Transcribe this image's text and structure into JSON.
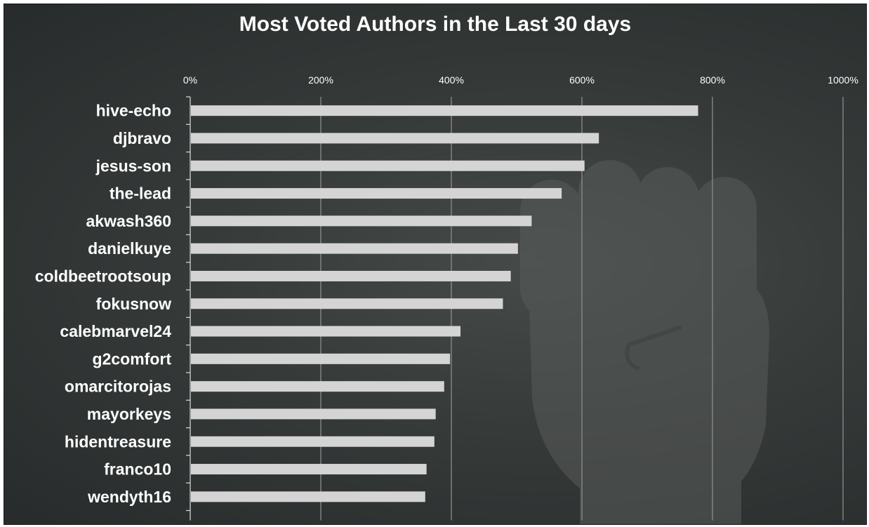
{
  "chart_data": {
    "type": "bar",
    "orientation": "horizontal",
    "title": "Most Voted Authors in the Last 30 days",
    "xlabel": "",
    "ylabel": "",
    "xlim": [
      0,
      1000
    ],
    "x_ticks": [
      0,
      200,
      400,
      600,
      800,
      1000
    ],
    "x_tick_labels": [
      "0%",
      "200%",
      "400%",
      "600%",
      "800%",
      "1000%"
    ],
    "tick_position": "top",
    "grid": true,
    "legend": "none",
    "categories": [
      "hive-echo",
      "djbravo",
      "jesus-son",
      "the-lead",
      "akwash360",
      "danielkuye",
      "coldbeetrootsoup",
      "fokusnow",
      "calebmarvel24",
      "g2comfort",
      "omarcitorojas",
      "mayorkeys",
      "hidentreasure",
      "franco10",
      "wendyth16"
    ],
    "values": [
      778,
      626,
      604,
      569,
      523,
      502,
      491,
      479,
      414,
      398,
      389,
      376,
      374,
      362,
      360
    ]
  },
  "colors": {
    "bar": "#d4d4d4",
    "background": "#363a39",
    "text": "#ffffff",
    "grid": "#8a8d8c"
  },
  "watermark": {
    "icon": "raised-fist-icon"
  }
}
